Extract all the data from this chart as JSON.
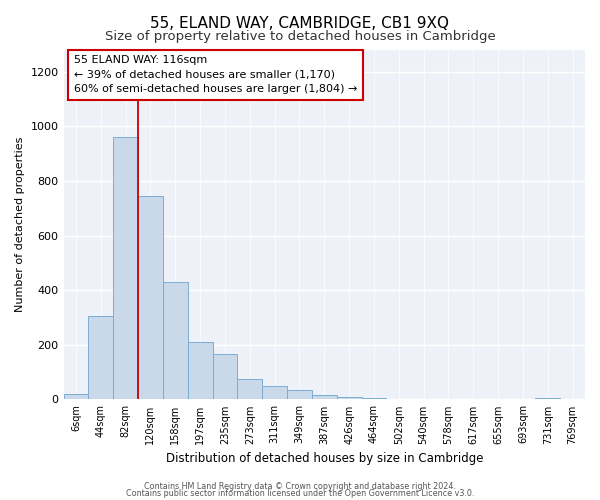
{
  "title": "55, ELAND WAY, CAMBRIDGE, CB1 9XQ",
  "subtitle": "Size of property relative to detached houses in Cambridge",
  "xlabel": "Distribution of detached houses by size in Cambridge",
  "ylabel": "Number of detached properties",
  "bar_labels": [
    "6sqm",
    "44sqm",
    "82sqm",
    "120sqm",
    "158sqm",
    "197sqm",
    "235sqm",
    "273sqm",
    "311sqm",
    "349sqm",
    "387sqm",
    "426sqm",
    "464sqm",
    "502sqm",
    "540sqm",
    "578sqm",
    "617sqm",
    "655sqm",
    "693sqm",
    "731sqm",
    "769sqm"
  ],
  "bar_values": [
    20,
    305,
    960,
    745,
    430,
    210,
    165,
    75,
    48,
    35,
    18,
    10,
    5,
    2,
    1,
    0,
    0,
    0,
    0,
    5,
    0
  ],
  "bar_color": "#c9d9ea",
  "bar_edge_color": "#7aadd4",
  "vline_x": 3,
  "vline_color": "#cc0000",
  "annotation_line1": "55 ELAND WAY: 116sqm",
  "annotation_line2": "← 39% of detached houses are smaller (1,170)",
  "annotation_line3": "60% of semi-detached houses are larger (1,804) →",
  "ylim": [
    0,
    1280
  ],
  "yticks": [
    0,
    200,
    400,
    600,
    800,
    1000,
    1200
  ],
  "footer_line1": "Contains HM Land Registry data © Crown copyright and database right 2024.",
  "footer_line2": "Contains public sector information licensed under the Open Government Licence v3.0.",
  "title_fontsize": 11,
  "subtitle_fontsize": 9.5,
  "bg_color": "#ffffff",
  "plot_bg_color": "#eef2f8"
}
